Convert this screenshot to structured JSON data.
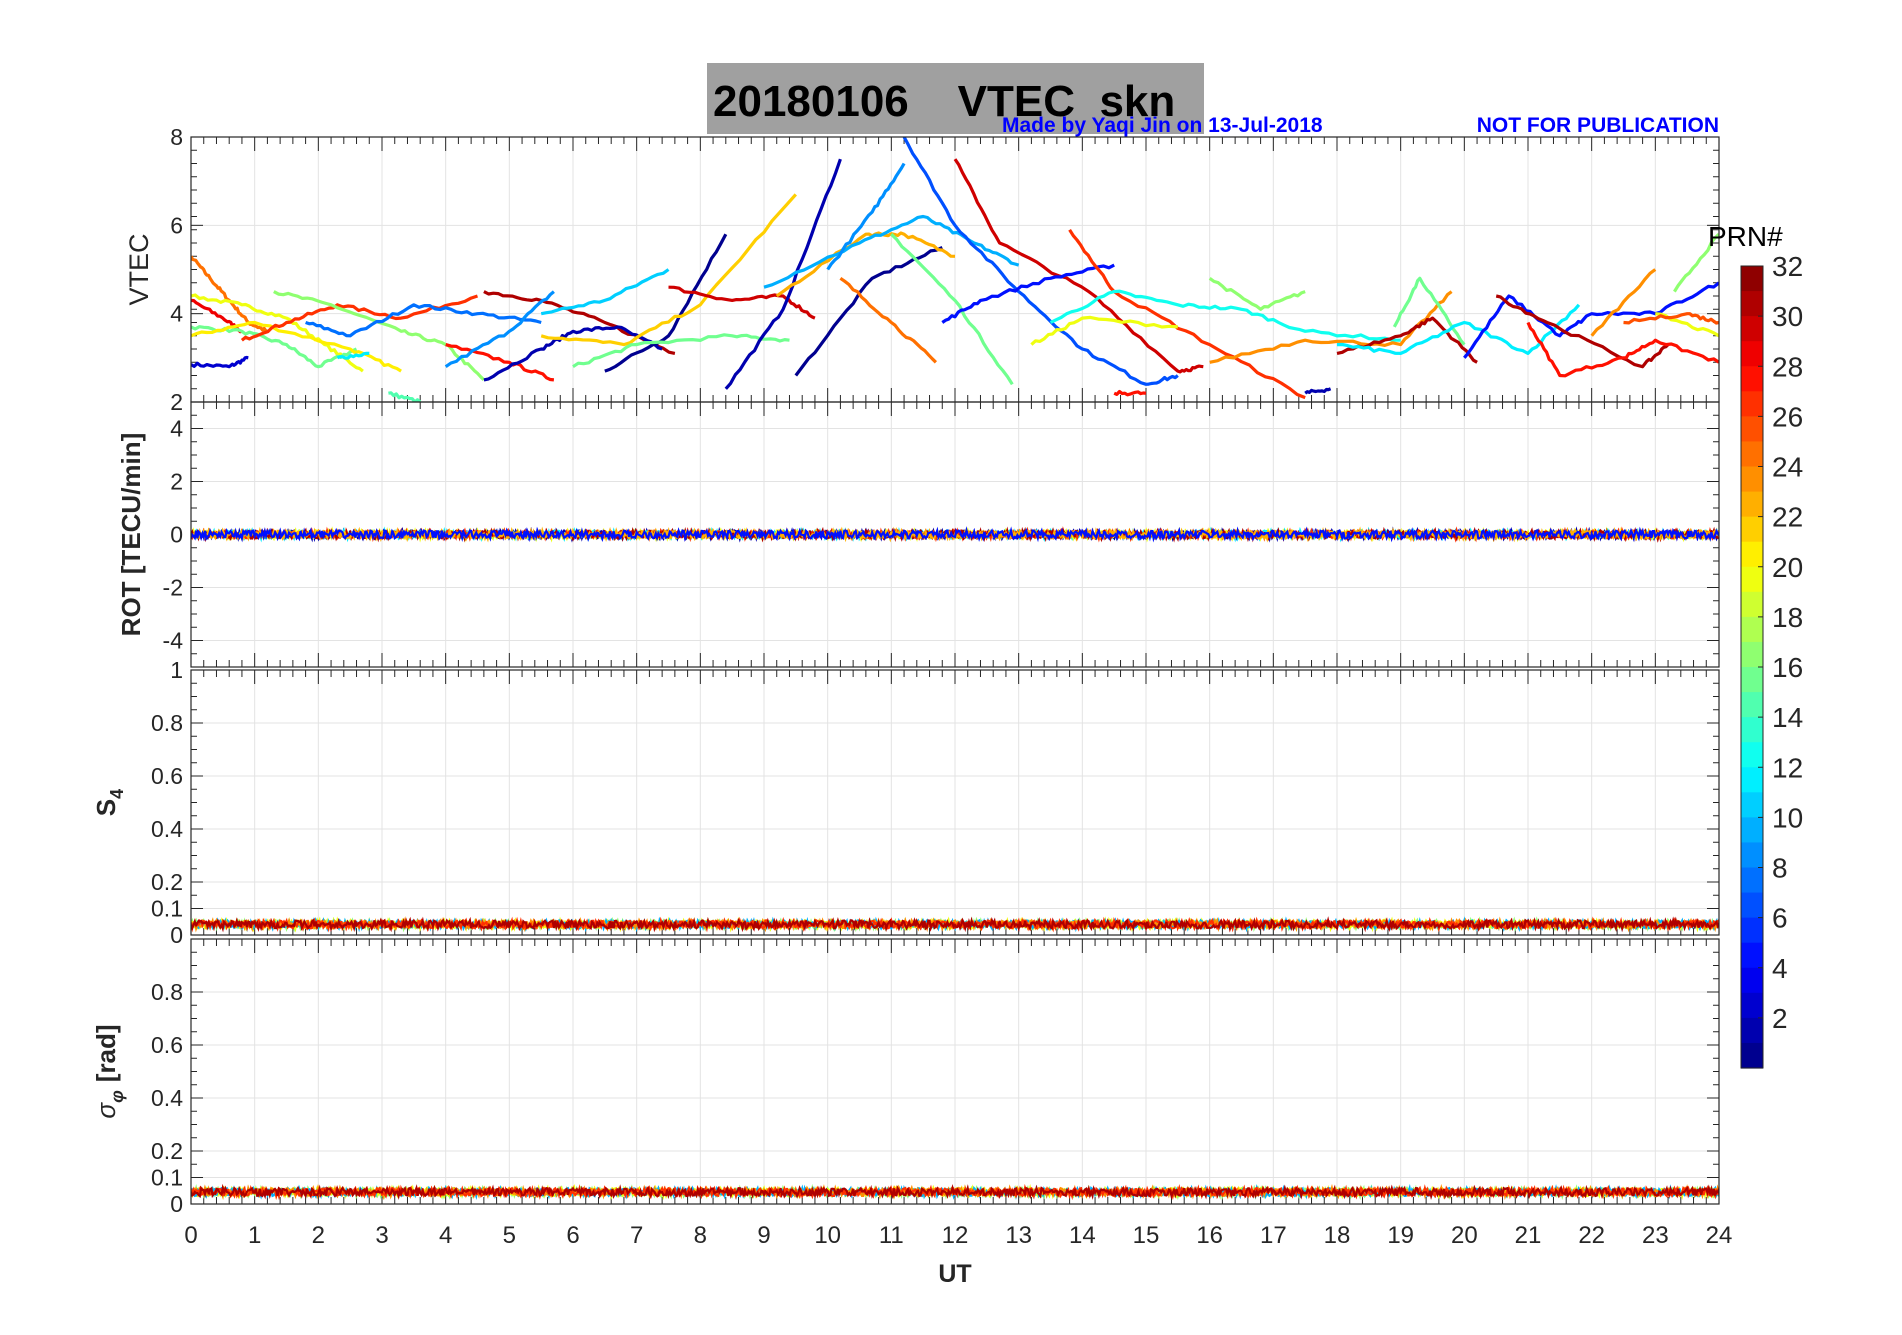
{
  "chart_data": {
    "type": "line",
    "title": "20180106    VTEC  skn",
    "credit": "Made by Yaqi Jin on 13-Jul-2018",
    "notice": "NOT FOR PUBLICATION",
    "xlabel": "UT",
    "xlim": [
      0,
      24
    ],
    "xticks": [
      "0",
      "1",
      "2",
      "3",
      "4",
      "5",
      "6",
      "7",
      "8",
      "9",
      "10",
      "11",
      "12",
      "13",
      "14",
      "15",
      "16",
      "17",
      "18",
      "19",
      "20",
      "21",
      "22",
      "23",
      "24"
    ],
    "grid": true,
    "colorbar": {
      "label": "PRN#",
      "colormap": "jet",
      "range": [
        1,
        32
      ],
      "ticks": [
        "2",
        "4",
        "6",
        "8",
        "10",
        "12",
        "14",
        "16",
        "18",
        "20",
        "22",
        "24",
        "26",
        "28",
        "30",
        "32"
      ],
      "placement": "right"
    },
    "panels": [
      {
        "name": "vtec",
        "ylabel": "VTEC",
        "ylim": [
          2,
          8
        ],
        "yticks": [
          "2",
          "4",
          "6",
          "8"
        ],
        "tracks": [
          {
            "prn": 3,
            "points": [
              [
                0,
                2.85
              ],
              [
                0.6,
                2.8
              ],
              [
                0.9,
                3.0
              ]
            ]
          },
          {
            "prn": 25,
            "points": [
              [
                0,
                5.3
              ],
              [
                0.3,
                4.8
              ],
              [
                0.6,
                4.3
              ],
              [
                0.9,
                3.8
              ],
              [
                1.2,
                3.6
              ]
            ]
          },
          {
            "prn": 29,
            "points": [
              [
                0,
                4.3
              ],
              [
                0.5,
                3.9
              ],
              [
                0.8,
                3.6
              ]
            ]
          },
          {
            "prn": 20,
            "points": [
              [
                0,
                4.4
              ],
              [
                0.8,
                4.2
              ],
              [
                1.5,
                3.9
              ],
              [
                2.1,
                3.3
              ],
              [
                2.7,
                2.7
              ]
            ]
          },
          {
            "prn": 16,
            "points": [
              [
                0,
                3.7
              ],
              [
                0.8,
                3.6
              ],
              [
                1.5,
                3.3
              ],
              [
                2,
                2.8
              ],
              [
                2.6,
                3.2
              ]
            ]
          },
          {
            "prn": 21,
            "points": [
              [
                0,
                3.5
              ],
              [
                1,
                3.8
              ],
              [
                2.5,
                3.2
              ],
              [
                3.3,
                2.7
              ]
            ]
          },
          {
            "prn": 27,
            "points": [
              [
                0.8,
                3.4
              ],
              [
                1.5,
                3.8
              ],
              [
                2.3,
                4.2
              ],
              [
                3.3,
                3.9
              ],
              [
                4.5,
                4.4
              ]
            ]
          },
          {
            "prn": 17,
            "points": [
              [
                1.3,
                4.5
              ],
              [
                2.2,
                4.2
              ],
              [
                3.3,
                3.6
              ],
              [
                4,
                3.3
              ],
              [
                4.6,
                2.5
              ]
            ]
          },
          {
            "prn": 8,
            "points": [
              [
                1.8,
                3.8
              ],
              [
                2.5,
                3.5
              ],
              [
                3.5,
                4.2
              ],
              [
                4.5,
                4.0
              ],
              [
                5.5,
                3.8
              ]
            ]
          },
          {
            "prn": 12,
            "points": [
              [
                2.3,
                3.0
              ],
              [
                2.8,
                3.1
              ]
            ]
          },
          {
            "prn": 15,
            "points": [
              [
                3.1,
                2.2
              ],
              [
                3.6,
                2.0
              ]
            ]
          },
          {
            "prn": 28,
            "points": [
              [
                4,
                3.3
              ],
              [
                5,
                2.9
              ],
              [
                5.7,
                2.5
              ]
            ]
          },
          {
            "prn": 31,
            "points": [
              [
                4.6,
                4.5
              ],
              [
                5.5,
                4.3
              ],
              [
                6.5,
                3.8
              ],
              [
                7.6,
                3.1
              ]
            ]
          },
          {
            "prn": 2,
            "points": [
              [
                4.6,
                2.5
              ],
              [
                5.5,
                3.2
              ],
              [
                6,
                3.6
              ],
              [
                6.7,
                3.7
              ],
              [
                7.4,
                3.2
              ]
            ]
          },
          {
            "prn": 9,
            "points": [
              [
                4,
                2.8
              ],
              [
                5,
                3.6
              ],
              [
                5.7,
                4.5
              ]
            ]
          },
          {
            "prn": 11,
            "points": [
              [
                5.5,
                4.0
              ],
              [
                6.5,
                4.3
              ],
              [
                7.5,
                5.0
              ]
            ]
          },
          {
            "prn": 1,
            "points": [
              [
                6.5,
                2.7
              ],
              [
                7.5,
                3.5
              ],
              [
                8.4,
                5.8
              ]
            ]
          },
          {
            "prn": 22,
            "points": [
              [
                5.5,
                3.5
              ],
              [
                6.8,
                3.3
              ],
              [
                8,
                4.2
              ],
              [
                9.5,
                6.7
              ]
            ]
          },
          {
            "prn": 16,
            "points": [
              [
                6,
                2.8
              ],
              [
                7,
                3.3
              ],
              [
                8.5,
                3.5
              ],
              [
                9.4,
                3.4
              ]
            ]
          },
          {
            "prn": 30,
            "points": [
              [
                7.5,
                4.6
              ],
              [
                8.5,
                4.3
              ],
              [
                9.3,
                4.4
              ],
              [
                9.8,
                3.9
              ]
            ]
          },
          {
            "prn": 2,
            "points": [
              [
                8.4,
                2.3
              ],
              [
                9.3,
                4.1
              ],
              [
                10.2,
                7.5
              ]
            ]
          },
          {
            "prn": 1,
            "points": [
              [
                9.5,
                2.6
              ],
              [
                10.7,
                4.8
              ],
              [
                11.8,
                5.5
              ]
            ]
          },
          {
            "prn": 23,
            "points": [
              [
                9.2,
                4.4
              ],
              [
                10.6,
                5.8
              ],
              [
                11.2,
                5.8
              ],
              [
                12,
                5.3
              ]
            ]
          },
          {
            "prn": 10,
            "points": [
              [
                9,
                4.6
              ],
              [
                10.5,
                5.6
              ],
              [
                11.5,
                6.2
              ],
              [
                12.3,
                5.6
              ],
              [
                13,
                5.1
              ]
            ]
          },
          {
            "prn": 9,
            "points": [
              [
                10,
                5.0
              ],
              [
                10.7,
                6.3
              ],
              [
                11.2,
                7.4
              ]
            ]
          },
          {
            "prn": 7,
            "points": [
              [
                11.2,
                8.0
              ],
              [
                12,
                6.0
              ],
              [
                13,
                4.5
              ],
              [
                14,
                3.2
              ],
              [
                15,
                2.4
              ],
              [
                15.5,
                2.6
              ]
            ]
          },
          {
            "prn": 30,
            "points": [
              [
                12,
                7.5
              ],
              [
                12.7,
                5.6
              ],
              [
                14.1,
                4.5
              ],
              [
                15.5,
                2.7
              ],
              [
                15.9,
                2.8
              ]
            ]
          },
          {
            "prn": 25,
            "points": [
              [
                10.2,
                4.8
              ],
              [
                11,
                3.8
              ],
              [
                11.7,
                2.9
              ]
            ]
          },
          {
            "prn": 16,
            "points": [
              [
                11,
                5.8
              ],
              [
                12,
                4.3
              ],
              [
                12.9,
                2.4
              ]
            ]
          },
          {
            "prn": 5,
            "points": [
              [
                11.8,
                3.8
              ],
              [
                12.4,
                4.3
              ],
              [
                13.5,
                4.8
              ],
              [
                14.5,
                5.1
              ]
            ]
          },
          {
            "prn": 27,
            "points": [
              [
                13.8,
                5.9
              ],
              [
                14.5,
                4.5
              ],
              [
                16,
                3.3
              ],
              [
                17.5,
                2.1
              ]
            ]
          },
          {
            "prn": 13,
            "points": [
              [
                13.5,
                3.8
              ],
              [
                14.5,
                4.5
              ],
              [
                15.5,
                4.2
              ],
              [
                16.5,
                4.1
              ],
              [
                17.5,
                3.6
              ],
              [
                19,
                3.4
              ]
            ]
          },
          {
            "prn": 20,
            "points": [
              [
                13.2,
                3.3
              ],
              [
                14,
                3.9
              ],
              [
                15.5,
                3.7
              ]
            ]
          },
          {
            "prn": 17,
            "points": [
              [
                16,
                4.8
              ],
              [
                16.8,
                4.1
              ],
              [
                17.5,
                4.5
              ]
            ]
          },
          {
            "prn": 24,
            "points": [
              [
                16,
                2.9
              ],
              [
                17.5,
                3.4
              ],
              [
                19,
                3.3
              ],
              [
                19.8,
                4.5
              ]
            ]
          },
          {
            "prn": 28,
            "points": [
              [
                14.5,
                2.2
              ],
              [
                15,
                2.2
              ]
            ]
          },
          {
            "prn": 2,
            "points": [
              [
                17.5,
                2.2
              ],
              [
                17.9,
                2.3
              ]
            ]
          },
          {
            "prn": 31,
            "points": [
              [
                18,
                3.1
              ],
              [
                19,
                3.5
              ],
              [
                19.5,
                3.9
              ],
              [
                20.2,
                2.9
              ]
            ]
          },
          {
            "prn": 16,
            "points": [
              [
                18.9,
                3.7
              ],
              [
                19.3,
                4.8
              ],
              [
                20,
                3.3
              ]
            ]
          },
          {
            "prn": 12,
            "points": [
              [
                18,
                3.3
              ],
              [
                19,
                3.1
              ],
              [
                20,
                3.8
              ],
              [
                21,
                3.1
              ],
              [
                21.8,
                4.2
              ]
            ]
          },
          {
            "prn": 5,
            "points": [
              [
                20,
                3.0
              ],
              [
                20.7,
                4.4
              ],
              [
                21.5,
                3.5
              ],
              [
                22,
                4.0
              ],
              [
                23,
                4.0
              ],
              [
                24,
                4.7
              ]
            ]
          },
          {
            "prn": 31,
            "points": [
              [
                20.5,
                4.4
              ],
              [
                21.3,
                3.8
              ],
              [
                22.8,
                2.8
              ],
              [
                23.2,
                3.3
              ]
            ]
          },
          {
            "prn": 28,
            "points": [
              [
                21,
                3.8
              ],
              [
                21.5,
                2.6
              ],
              [
                22.5,
                3.0
              ],
              [
                23,
                3.4
              ],
              [
                24,
                2.9
              ]
            ]
          },
          {
            "prn": 24,
            "points": [
              [
                22,
                3.5
              ],
              [
                23,
                5.0
              ]
            ]
          },
          {
            "prn": 17,
            "points": [
              [
                23.3,
                4.5
              ],
              [
                24,
                5.8
              ]
            ]
          },
          {
            "prn": 20,
            "points": [
              [
                23,
                4.0
              ],
              [
                24,
                3.5
              ]
            ]
          },
          {
            "prn": 26,
            "points": [
              [
                22.5,
                3.8
              ],
              [
                23.5,
                4.0
              ],
              [
                24,
                3.8
              ]
            ]
          }
        ]
      },
      {
        "name": "rot",
        "ylabel": "ROT [TECU/min]",
        "ylim": [
          -5,
          5
        ],
        "yticks": [
          "-4",
          "-2",
          "0",
          "2",
          "4"
        ],
        "noise": {
          "mean": 0,
          "amplitude": 0.15,
          "prns": [
            2,
            12,
            20,
            27,
            31,
            23,
            5
          ]
        }
      },
      {
        "name": "s4",
        "ylabel": "S",
        "ylabel_sub": "4",
        "ylim": [
          0,
          1
        ],
        "yticks": [
          "0",
          "0.1",
          "0.2",
          "0.4",
          "0.6",
          "0.8",
          "1"
        ],
        "noise": {
          "mean": 0.04,
          "amplitude": 0.015,
          "prns": [
            17,
            20,
            10,
            24,
            27,
            31
          ]
        }
      },
      {
        "name": "sigma-phi",
        "ylabel": "σ",
        "ylabel_sub": "φ",
        "ylabel_unit": "[rad]",
        "ylim": [
          0,
          1
        ],
        "yticks": [
          "0",
          "0.1",
          "0.2",
          "0.4",
          "0.6",
          "0.8"
        ],
        "noise": {
          "mean": 0.045,
          "amplitude": 0.015,
          "prns": [
            17,
            20,
            10,
            24,
            27,
            31
          ]
        }
      }
    ]
  }
}
